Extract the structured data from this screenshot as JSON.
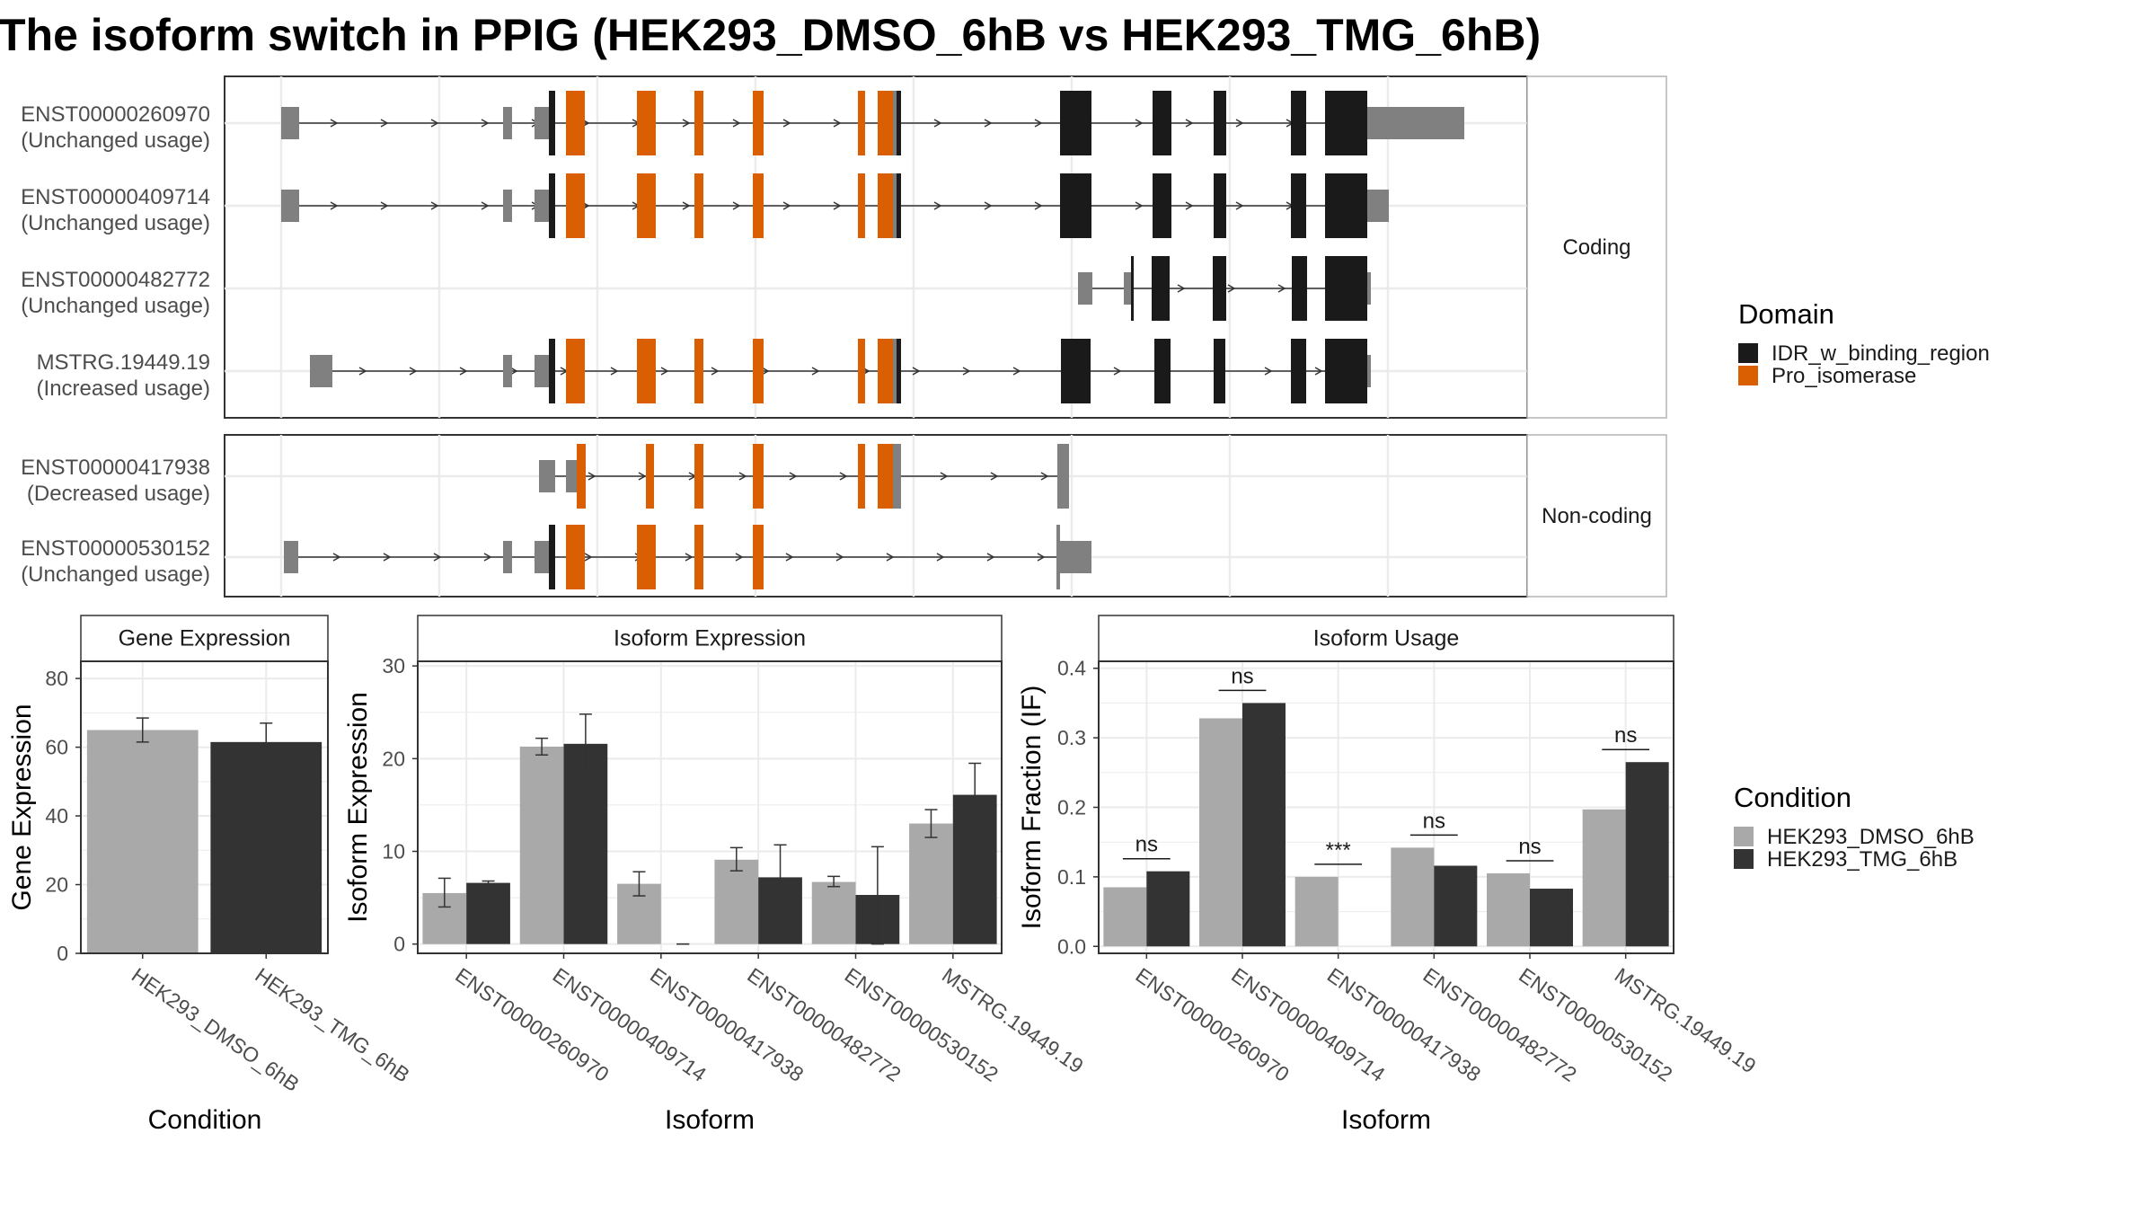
{
  "title": "The isoform switch in PPIG (HEK293_DMSO_6hB vs HEK293_TMG_6hB)",
  "colors": {
    "idr": "#1a1a1a",
    "pro_isomerase": "#d95f02",
    "utr_gray": "#808080",
    "dmso": "#a9a9a9",
    "tmg": "#333333",
    "strip_bg": "#ffffff",
    "grid": "#ebebeb"
  },
  "structure": {
    "groups": [
      {
        "label": "Coding",
        "transcripts": [
          {
            "id": "ENST00000260970",
            "usage": "(Unchanged usage)"
          },
          {
            "id": "ENST00000409714",
            "usage": "(Unchanged usage)"
          },
          {
            "id": "ENST00000482772",
            "usage": "(Unchanged usage)"
          },
          {
            "id": "MSTRG.19449.19",
            "usage": "(Increased usage)"
          }
        ]
      },
      {
        "label": "Non-coding",
        "transcripts": [
          {
            "id": "ENST00000417938",
            "usage": "(Decreased usage)"
          },
          {
            "id": "ENST00000530152",
            "usage": "(Unchanged usage)"
          }
        ]
      }
    ],
    "legend_title": "Domain",
    "legend_items": [
      {
        "label": "IDR_w_binding_region",
        "color": "#1a1a1a"
      },
      {
        "label": "Pro_isomerase",
        "color": "#d95f02"
      }
    ]
  },
  "chart_data": [
    {
      "type": "bar",
      "title": "Gene Expression",
      "xlabel": "Condition",
      "ylabel": "Gene Expression",
      "ylim": [
        0,
        85
      ],
      "yticks": [
        0,
        20,
        40,
        60,
        80
      ],
      "categories": [
        "HEK293_DMSO_6hB",
        "HEK293_TMG_6hB"
      ],
      "values": [
        65,
        61.5
      ],
      "errors": [
        [
          61.5,
          68.5
        ],
        [
          56,
          67
        ]
      ]
    },
    {
      "type": "bar",
      "title": "Isoform Expression",
      "xlabel": "Isoform",
      "ylabel": "Isoform Expression",
      "ylim": [
        -1,
        30.5
      ],
      "yticks": [
        0,
        10,
        20,
        30
      ],
      "categories": [
        "ENST00000260970",
        "ENST00000409714",
        "ENST00000417938",
        "ENST00000482772",
        "ENST00000530152",
        "MSTRG.19449.19"
      ],
      "series": [
        {
          "name": "HEK293_DMSO_6hB",
          "values": [
            5.5,
            21.3,
            6.5,
            9.1,
            6.7,
            13.0
          ],
          "errors": [
            [
              4.0,
              7.1
            ],
            [
              20.4,
              22.2
            ],
            [
              5.2,
              7.8
            ],
            [
              7.9,
              10.4
            ],
            [
              6.2,
              7.3
            ],
            [
              11.5,
              14.5
            ]
          ]
        },
        {
          "name": "HEK293_TMG_6hB",
          "values": [
            6.6,
            21.6,
            0.0,
            7.2,
            5.3,
            16.1
          ],
          "errors": [
            [
              6.4,
              6.8
            ],
            [
              18.3,
              24.8
            ],
            [
              0,
              0
            ],
            [
              3.6,
              10.7
            ],
            [
              0,
              10.5
            ],
            [
              12.7,
              19.5
            ]
          ]
        }
      ]
    },
    {
      "type": "bar",
      "title": "Isoform Usage",
      "xlabel": "Isoform",
      "ylabel": "Isoform Fraction (IF)",
      "ylim": [
        -0.01,
        0.41
      ],
      "yticks": [
        0.0,
        0.1,
        0.2,
        0.3,
        0.4
      ],
      "ytick_labels": [
        "0.0",
        "0.1",
        "0.2",
        "0.3",
        "0.4"
      ],
      "categories": [
        "ENST00000260970",
        "ENST00000409714",
        "ENST00000417938",
        "ENST00000482772",
        "ENST00000530152",
        "MSTRG.19449.19"
      ],
      "series": [
        {
          "name": "HEK293_DMSO_6hB",
          "values": [
            0.085,
            0.328,
            0.1,
            0.142,
            0.105,
            0.197
          ]
        },
        {
          "name": "HEK293_TMG_6hB",
          "values": [
            0.108,
            0.35,
            0.0,
            0.116,
            0.083,
            0.265
          ]
        }
      ],
      "significance": [
        "ns",
        "ns",
        "***",
        "ns",
        "ns",
        "ns"
      ]
    }
  ],
  "condition_legend": {
    "title": "Condition",
    "items": [
      {
        "label": "HEK293_DMSO_6hB",
        "color": "#a9a9a9"
      },
      {
        "label": "HEK293_TMG_6hB",
        "color": "#333333"
      }
    ]
  }
}
